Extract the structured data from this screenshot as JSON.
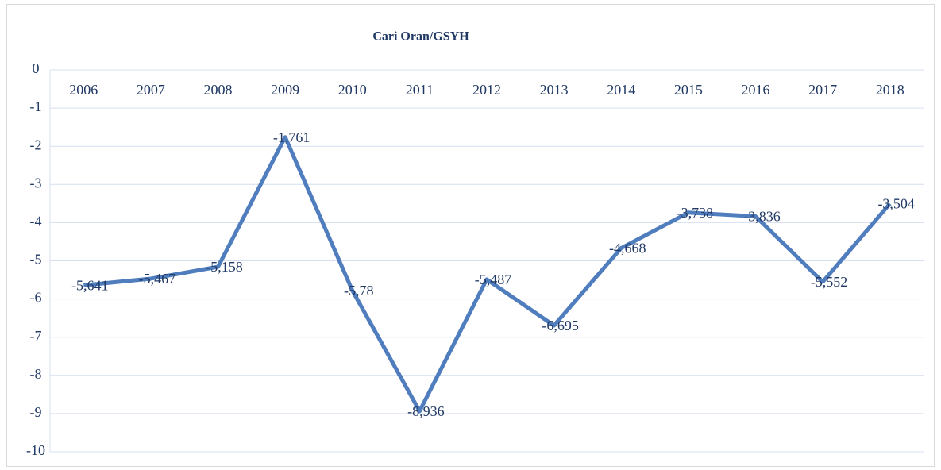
{
  "chart_data": {
    "type": "line",
    "title": "Cari Oran/GSYH",
    "categories": [
      "2006",
      "2007",
      "2008",
      "2009",
      "2010",
      "2011",
      "2012",
      "2013",
      "2014",
      "2015",
      "2016",
      "2017",
      "2018"
    ],
    "series": [
      {
        "color": "#4f7dbd",
        "values": [
          -5.641,
          -5.467,
          -5.158,
          -1.761,
          -5.78,
          -8.936,
          -5.487,
          -6.695,
          -4.668,
          -3.738,
          -3.836,
          -5.552,
          -3.504
        ],
        "value_labels": [
          "-5,641",
          "-5,467",
          "-5,158",
          "-1,761",
          "-5,78",
          "-8,936",
          "-5,487",
          "-6,695",
          "-4,668",
          "-3,738",
          "-3,836",
          "-5,552",
          "-3,504"
        ]
      }
    ],
    "ylim": [
      -10,
      0
    ],
    "yticks": [
      0,
      -1,
      -2,
      -3,
      -4,
      -5,
      -6,
      -7,
      -8,
      -9,
      -10
    ],
    "grid": true
  }
}
